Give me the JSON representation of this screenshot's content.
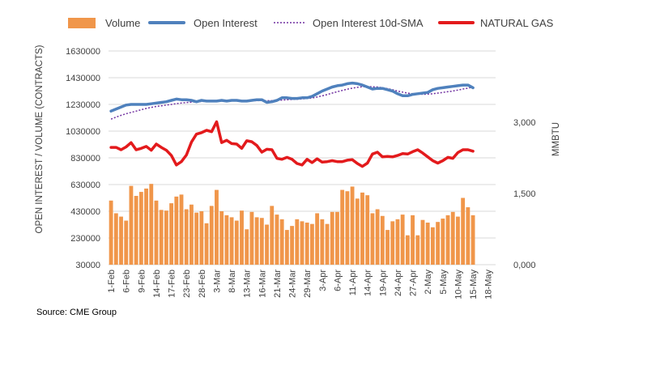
{
  "source": "Source: CME Group",
  "colors": {
    "volume": "#F0964A",
    "open_interest": "#4F81BD",
    "sma": "#7030A0",
    "natural_gas": "#E31A1C",
    "grid": "#D9D9D9",
    "text": "#404040"
  },
  "chart_data": {
    "type": "bar",
    "title": "",
    "xlabel": "",
    "ylabel": "OPEN INTEREST / VOLUME (CONTRACTS)",
    "y2label": "MMBTU",
    "ylim": [
      30000,
      1630000
    ],
    "y2lim": [
      0,
      4.5
    ],
    "y_ticks": [
      "1630000",
      "1430000",
      "1230000",
      "1030000",
      "830000",
      "630000",
      "430000",
      "230000",
      "30000"
    ],
    "y2_ticks": [
      "3,000",
      "1,500",
      "0,000"
    ],
    "y2_tick_values": [
      3,
      1.5,
      0
    ],
    "x_tick_labels": [
      "1-Feb",
      "6-Feb",
      "9-Feb",
      "14-Feb",
      "17-Feb",
      "23-Feb",
      "28-Feb",
      "3-Mar",
      "8-Mar",
      "13-Mar",
      "16-Mar",
      "21-Mar",
      "24-Mar",
      "29-Mar",
      "3-Apr",
      "6-Apr",
      "11-Apr",
      "14-Apr",
      "19-Apr",
      "24-Apr",
      "27-Apr",
      "2-May",
      "5-May",
      "10-May",
      "15-May",
      "18-May"
    ],
    "x_tick_index": [
      0,
      3,
      6,
      9,
      12,
      15,
      18,
      21,
      24,
      27,
      30,
      33,
      36,
      39,
      42,
      45,
      48,
      51,
      54,
      57,
      60,
      63,
      66,
      69,
      72,
      75
    ],
    "legend": [
      "Volume",
      "Open Interest",
      "Open Interest 10d-SMA",
      "NATURAL GAS"
    ],
    "series": [
      {
        "name": "Volume",
        "type": "bar",
        "axis": "left",
        "values": [
          510000,
          415000,
          390000,
          360000,
          620000,
          545000,
          575000,
          600000,
          635000,
          510000,
          440000,
          435000,
          490000,
          540000,
          555000,
          445000,
          480000,
          420000,
          430000,
          340000,
          470000,
          590000,
          430000,
          400000,
          385000,
          360000,
          435000,
          295000,
          425000,
          385000,
          380000,
          330000,
          470000,
          405000,
          370000,
          290000,
          320000,
          370000,
          355000,
          345000,
          335000,
          415000,
          370000,
          335000,
          425000,
          425000,
          590000,
          580000,
          615000,
          525000,
          570000,
          550000,
          415000,
          445000,
          395000,
          290000,
          355000,
          370000,
          405000,
          250000,
          400000,
          250000,
          365000,
          345000,
          310000,
          350000,
          375000,
          400000,
          425000,
          390000,
          530000,
          460000,
          400000
        ],
        "hidden_tail": 0
      },
      {
        "name": "Open Interest",
        "type": "line",
        "axis": "left",
        "values": [
          1180000,
          1195000,
          1210000,
          1225000,
          1230000,
          1230000,
          1230000,
          1230000,
          1235000,
          1240000,
          1245000,
          1250000,
          1260000,
          1270000,
          1265000,
          1265000,
          1260000,
          1250000,
          1260000,
          1255000,
          1255000,
          1255000,
          1260000,
          1255000,
          1260000,
          1260000,
          1255000,
          1255000,
          1260000,
          1265000,
          1265000,
          1245000,
          1250000,
          1260000,
          1280000,
          1280000,
          1275000,
          1275000,
          1280000,
          1280000,
          1290000,
          1310000,
          1330000,
          1345000,
          1360000,
          1370000,
          1375000,
          1385000,
          1390000,
          1385000,
          1375000,
          1360000,
          1345000,
          1350000,
          1350000,
          1340000,
          1330000,
          1310000,
          1295000,
          1295000,
          1305000,
          1310000,
          1315000,
          1320000,
          1340000,
          1350000,
          1355000,
          1360000,
          1365000,
          1370000,
          1375000,
          1375000,
          1355000
        ]
      },
      {
        "name": "Open Interest 10d-SMA",
        "type": "line",
        "axis": "left",
        "values": [
          1120000,
          1135000,
          1148000,
          1160000,
          1170000,
          1180000,
          1190000,
          1200000,
          1208000,
          1215000,
          1220000,
          1225000,
          1230000,
          1236000,
          1240000,
          1244000,
          1247000,
          1250000,
          1252000,
          1253000,
          1254000,
          1255000,
          1255000,
          1255000,
          1256000,
          1256000,
          1257000,
          1257000,
          1258000,
          1258000,
          1259000,
          1258000,
          1258000,
          1260000,
          1263000,
          1265000,
          1267000,
          1269000,
          1271000,
          1274000,
          1278000,
          1285000,
          1294000,
          1304000,
          1315000,
          1325000,
          1335000,
          1344000,
          1352000,
          1358000,
          1362000,
          1363000,
          1362000,
          1360000,
          1355000,
          1348000,
          1340000,
          1330000,
          1322000,
          1315000,
          1310000,
          1307000,
          1306000,
          1307000,
          1310000,
          1315000,
          1320000,
          1325000,
          1330000,
          1337000,
          1345000,
          1352000,
          1360000
        ]
      },
      {
        "name": "NATURAL GAS",
        "type": "line",
        "axis": "right",
        "values": [
          2.47,
          2.47,
          2.42,
          2.48,
          2.57,
          2.42,
          2.45,
          2.49,
          2.41,
          2.54,
          2.47,
          2.41,
          2.3,
          2.1,
          2.17,
          2.31,
          2.58,
          2.75,
          2.78,
          2.83,
          2.8,
          3.01,
          2.57,
          2.62,
          2.55,
          2.54,
          2.45,
          2.61,
          2.59,
          2.51,
          2.37,
          2.43,
          2.42,
          2.24,
          2.22,
          2.26,
          2.22,
          2.13,
          2.1,
          2.22,
          2.15,
          2.23,
          2.16,
          2.17,
          2.19,
          2.17,
          2.17,
          2.2,
          2.21,
          2.13,
          2.07,
          2.14,
          2.33,
          2.37,
          2.27,
          2.28,
          2.27,
          2.3,
          2.34,
          2.33,
          2.38,
          2.42,
          2.35,
          2.27,
          2.19,
          2.14,
          2.19,
          2.26,
          2.24,
          2.36,
          2.42,
          2.42,
          2.39
        ]
      }
    ]
  }
}
